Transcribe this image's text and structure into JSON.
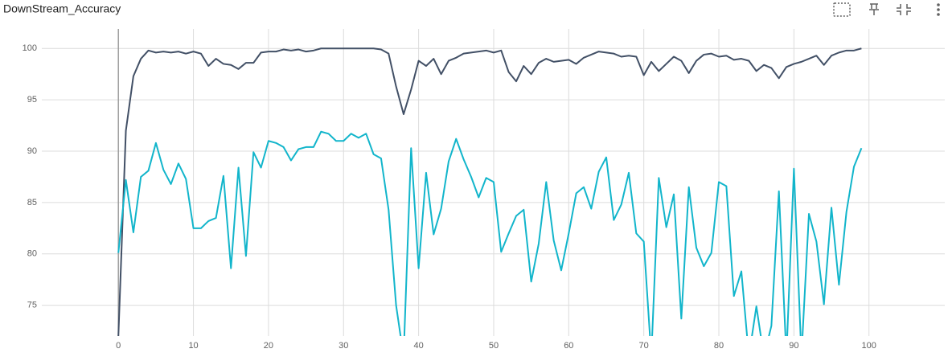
{
  "chart_data": {
    "type": "line",
    "title": "DownStream_Accuracy",
    "x": [
      0,
      1,
      2,
      3,
      4,
      5,
      6,
      7,
      8,
      9,
      10,
      11,
      12,
      13,
      14,
      15,
      16,
      17,
      18,
      19,
      20,
      21,
      22,
      23,
      24,
      25,
      26,
      27,
      28,
      29,
      30,
      31,
      32,
      33,
      34,
      35,
      36,
      37,
      38,
      39,
      40,
      41,
      42,
      43,
      44,
      45,
      46,
      47,
      48,
      49,
      50,
      51,
      52,
      53,
      54,
      55,
      56,
      57,
      58,
      59,
      60,
      61,
      62,
      63,
      64,
      65,
      66,
      67,
      68,
      69,
      70,
      71,
      72,
      73,
      74,
      75,
      76,
      77,
      78,
      79,
      80,
      81,
      82,
      83,
      84,
      85,
      86,
      87,
      88,
      89,
      90,
      91,
      92,
      93,
      94,
      95,
      96,
      97,
      98,
      99
    ],
    "series": [
      {
        "color": "#425066",
        "values": [
          72,
          92,
          97.3,
          99,
          99.8,
          99.6,
          99.7,
          99.6,
          99.7,
          99.5,
          99.7,
          99.5,
          98.3,
          99,
          98.5,
          98.4,
          98,
          98.6,
          98.6,
          99.6,
          99.7,
          99.7,
          99.9,
          99.8,
          99.9,
          99.7,
          99.8,
          100,
          100,
          100,
          100,
          100,
          100,
          100,
          100,
          99.9,
          99.5,
          96.3,
          93.6,
          96,
          98.8,
          98.3,
          99,
          97.5,
          98.8,
          99.1,
          99.5,
          99.6,
          99.7,
          99.8,
          99.6,
          99.8,
          97.7,
          96.8,
          98.3,
          97.5,
          98.6,
          99,
          98.7,
          98.8,
          98.9,
          98.5,
          99.1,
          99.4,
          99.7,
          99.6,
          99.5,
          99.2,
          99.3,
          99.2,
          97.4,
          98.7,
          97.8,
          98.5,
          99.2,
          98.8,
          97.6,
          98.8,
          99.4,
          99.5,
          99.2,
          99.3,
          98.9,
          99,
          98.8,
          97.8,
          98.4,
          98.1,
          97.1,
          98.2,
          98.5,
          98.7,
          99,
          99.3,
          98.4,
          99.3,
          99.6,
          99.8,
          99.8,
          100
        ]
      },
      {
        "color": "#12b5cb",
        "values": [
          80.1,
          87.2,
          82.1,
          87.5,
          88.1,
          90.8,
          88.2,
          86.8,
          88.8,
          87.3,
          82.5,
          82.5,
          83.2,
          83.5,
          87.6,
          78.6,
          88.4,
          79.8,
          89.9,
          88.4,
          91,
          90.8,
          90.4,
          89.1,
          90.2,
          90.4,
          90.4,
          91.9,
          91.7,
          91,
          91,
          91.7,
          91.3,
          91.7,
          89.7,
          89.3,
          84.3,
          75,
          70,
          90.3,
          78.6,
          87.9,
          81.9,
          84.4,
          89,
          91.2,
          89.2,
          87.5,
          85.5,
          87.4,
          87,
          80.2,
          82,
          83.7,
          84.3,
          77.3,
          81,
          87,
          81.3,
          78.4,
          82,
          85.9,
          86.5,
          84.4,
          88,
          89.4,
          83.3,
          84.8,
          87.9,
          82,
          81.2,
          70,
          87.4,
          82.6,
          85.8,
          73.7,
          86.5,
          80.6,
          78.8,
          80.1,
          87,
          86.6,
          75.9,
          78.3,
          70,
          74.9,
          70,
          73,
          86.1,
          70,
          88.3,
          70,
          83.9,
          81.2,
          75.1,
          84.5,
          77,
          84.1,
          88.5,
          90.3
        ]
      }
    ],
    "xlim": [
      -10.2,
      110.1
    ],
    "ylim": [
      72,
      101.9
    ],
    "xticks": [
      0,
      10,
      20,
      30,
      40,
      50,
      60,
      70,
      80,
      90,
      100
    ],
    "yticks": [
      75,
      80,
      85,
      90,
      95,
      100
    ],
    "grid": true
  }
}
